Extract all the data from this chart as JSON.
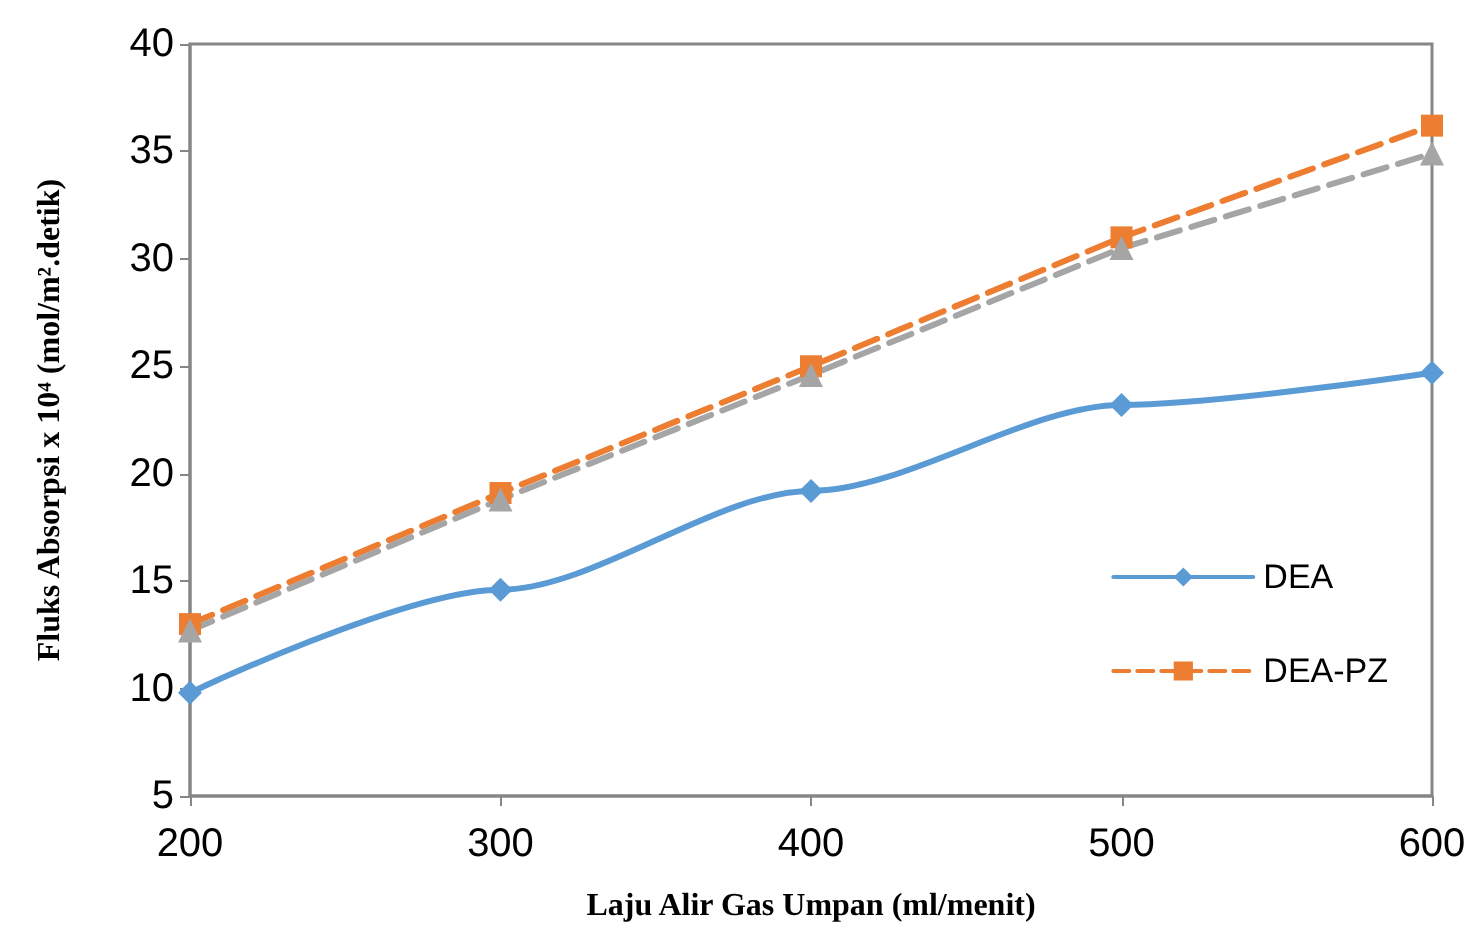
{
  "chart_data": {
    "type": "line",
    "xlabel": "Laju Alir Gas Umpan (ml/menit)",
    "ylabel": "Fluks Absorpsi x 10⁴ (mol/m².detik)",
    "x": [
      200,
      300,
      400,
      500,
      600
    ],
    "series": [
      {
        "name": "DEA",
        "color": "#5b9bd5",
        "marker": "diamond",
        "line_style": "solid",
        "values": [
          9.8,
          14.6,
          19.2,
          23.2,
          24.7
        ]
      },
      {
        "name": "DEA-PZ",
        "color": "#ed7d31",
        "marker": "square",
        "line_style": "dashed",
        "values": [
          13.0,
          19.1,
          25.0,
          31.0,
          36.2
        ]
      },
      {
        "color": "#a5a5a5",
        "marker": "triangle",
        "line_style": "dashed",
        "values": [
          12.7,
          18.8,
          24.6,
          30.5,
          34.9
        ]
      }
    ],
    "xlim": [
      200,
      600
    ],
    "xticks": [
      200,
      300,
      400,
      500,
      600
    ],
    "ylim": [
      5,
      40
    ],
    "yticks": [
      5,
      10,
      15,
      20,
      25,
      30,
      35,
      40
    ],
    "grid": false,
    "legend": "right"
  }
}
